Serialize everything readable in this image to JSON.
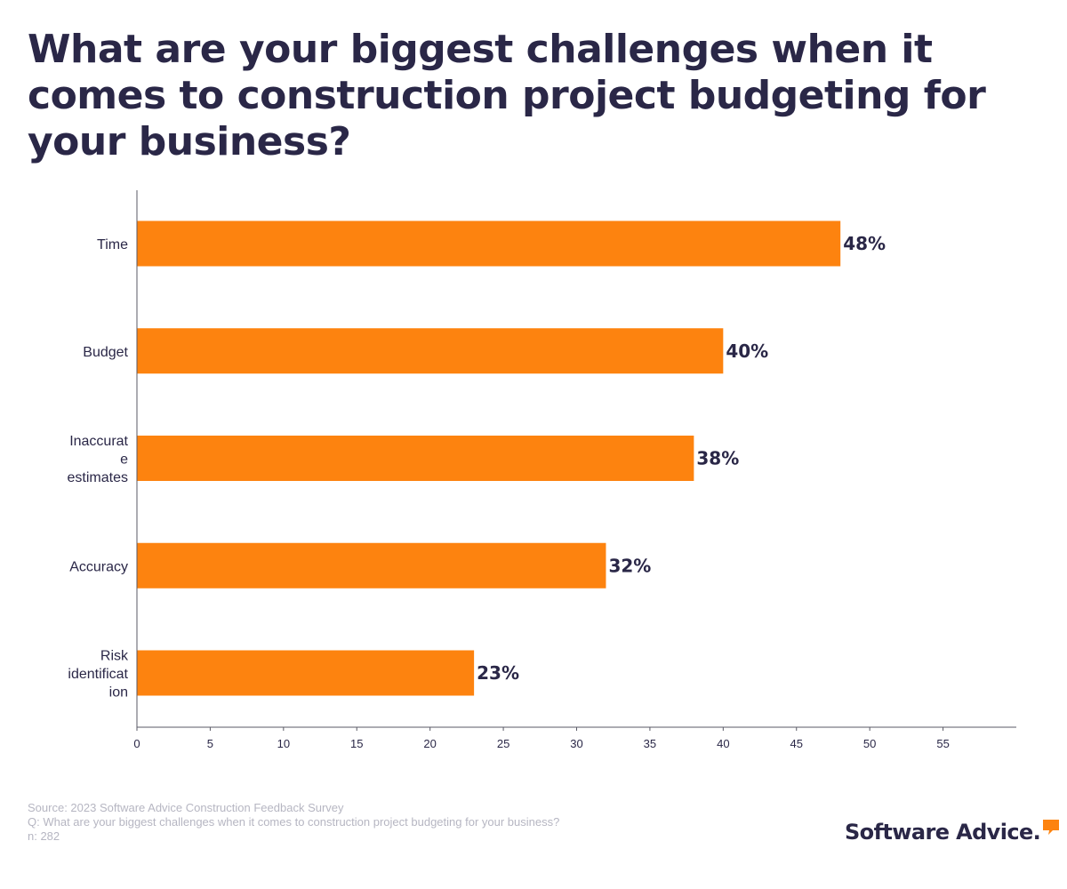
{
  "title": "What are your biggest challenges when it comes to construction project budgeting for your business?",
  "colors": {
    "bar": "#fd830f",
    "text": "#2a2747",
    "axis": "#5a5a66",
    "footer": "#b6b6c2"
  },
  "chart_data": {
    "type": "bar",
    "orientation": "horizontal",
    "categories": [
      "Time",
      "Budget",
      "Inaccurat e estimates",
      "Accuracy",
      "Risk identificat ion"
    ],
    "category_label_lines": [
      [
        "Time"
      ],
      [
        "Budget"
      ],
      [
        "Inaccurat",
        "e",
        "estimates"
      ],
      [
        "Accuracy"
      ],
      [
        "Risk",
        "identificat",
        "ion"
      ]
    ],
    "values": [
      48,
      40,
      38,
      32,
      23
    ],
    "value_labels": [
      "48%",
      "40%",
      "38%",
      "32%",
      "23%"
    ],
    "x_ticks": [
      0,
      5,
      10,
      15,
      20,
      25,
      30,
      35,
      40,
      45,
      50,
      55
    ],
    "xlim": [
      0,
      60
    ],
    "xlabel": "",
    "ylabel": "",
    "grid": false
  },
  "footer": {
    "source": "Source: 2023 Software Advice Construction Feedback Survey",
    "question": "Q: What are your biggest challenges when it comes to construction project budgeting for your business?",
    "n": "n: 282"
  },
  "logo": {
    "text": "Software Advice.",
    "icon": "speech-bubble-icon"
  }
}
